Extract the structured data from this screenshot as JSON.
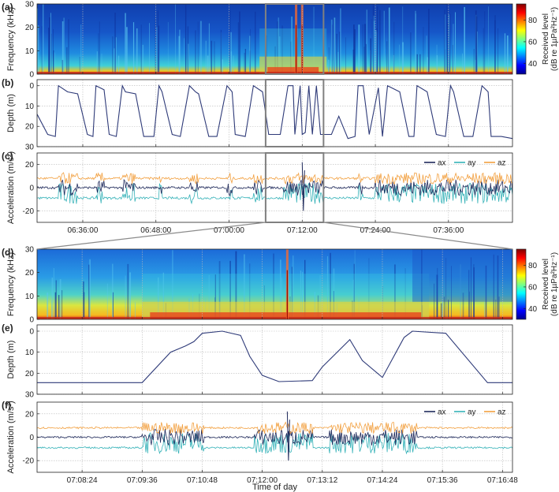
{
  "chart_data": [
    {
      "panel": "(a)",
      "type": "heatmap",
      "ylabel": "Frequency (kHz)",
      "yticks": [
        0,
        10,
        20,
        30
      ],
      "ylim": [
        0,
        30
      ],
      "x_range": [
        "06:28:30",
        "07:46:30"
      ],
      "colorbar": {
        "label_line1": "Received level",
        "label_line2": "(dB re 1µPa²Hz⁻¹)",
        "ticks": [
          40,
          60,
          80
        ],
        "range": [
          30,
          95
        ]
      },
      "highlight_box": [
        "07:06:00",
        "07:15:30"
      ],
      "loud_events": [
        "07:11:00",
        "07:12:00"
      ]
    },
    {
      "panel": "(b)",
      "type": "line",
      "ylabel": "Depth (m)",
      "yticks": [
        0,
        10,
        20,
        30
      ],
      "ylim": [
        30,
        -3
      ],
      "x_range": [
        "06:28:30",
        "07:46:30"
      ],
      "highlight_box": [
        "07:06:00",
        "07:15:30"
      ],
      "series": [
        {
          "color": "#2e3a78",
          "x": [
            "06:28:30",
            "06:30:15",
            "06:31:30",
            "06:32:00",
            "06:33:30",
            "06:35:10",
            "06:36:45",
            "06:37:40",
            "06:38:10",
            "06:39:30",
            "06:40:20",
            "06:41:30",
            "06:42:30",
            "06:43:00",
            "06:44:40",
            "06:46:00",
            "06:47:40",
            "06:48:30",
            "06:49:00",
            "06:50:40",
            "06:52:00",
            "06:53:30",
            "06:54:30",
            "06:55:00",
            "06:56:40",
            "06:58:00",
            "06:59:40",
            "07:00:30",
            "07:01:00",
            "07:02:40",
            "07:04:00",
            "07:05:30",
            "07:06:30",
            "07:07:00",
            "07:08:24",
            "07:09:40",
            "07:10:30",
            "07:10:48",
            "07:11:40",
            "07:12:00",
            "07:12:30",
            "07:13:05",
            "07:13:40",
            "07:14:20",
            "07:15:00",
            "07:15:40",
            "07:16:48",
            "07:18:00",
            "07:19:30",
            "07:20:40",
            "07:21:10",
            "07:22:00",
            "07:23:00",
            "07:24:30",
            "07:25:10",
            "07:26:00",
            "07:28:00",
            "07:29:30",
            "07:30:20",
            "07:30:50",
            "07:32:30",
            "07:34:00",
            "07:35:30",
            "07:36:20",
            "07:36:50",
            "07:38:30",
            "07:40:00",
            "07:41:30",
            "07:42:30",
            "07:43:00",
            "07:44:40",
            "07:46:30"
          ],
          "y": [
            14,
            24,
            25,
            0,
            3,
            4,
            24,
            25,
            0,
            2,
            24,
            25,
            0,
            3,
            4,
            25,
            25,
            0,
            3,
            24,
            25,
            0,
            3,
            4,
            25,
            25,
            0,
            3,
            24,
            25,
            0,
            3,
            24,
            24,
            24,
            0,
            0,
            24,
            0,
            24,
            23,
            0,
            24,
            0,
            24,
            24,
            24,
            15,
            26,
            25,
            0,
            0,
            24,
            1,
            25,
            0,
            3,
            25,
            25,
            0,
            3,
            24,
            25,
            0,
            3,
            25,
            25,
            0,
            3,
            25,
            25,
            26
          ]
        }
      ]
    },
    {
      "panel": "(c)",
      "type": "line",
      "ylabel": "Acceleration (m/s²)",
      "yticks": [
        -20,
        0,
        20
      ],
      "ylim": [
        -30,
        30
      ],
      "x_range": [
        "06:28:30",
        "07:46:30"
      ],
      "xtick_labels": [
        "06:36:00",
        "06:48:00",
        "07:00:00",
        "07:12:00",
        "07:24:00",
        "07:36:00"
      ],
      "highlight_box": [
        "07:06:00",
        "07:15:30"
      ],
      "legend_placement": "top-right",
      "series": [
        {
          "name": "ax",
          "color": "#1f2a5c",
          "baseline": 0,
          "amplitude": 7
        },
        {
          "name": "ay",
          "color": "#35b2b8",
          "baseline": -5,
          "amplitude": 9
        },
        {
          "name": "az",
          "color": "#f2a040",
          "baseline": 8,
          "amplitude": 5
        }
      ]
    },
    {
      "panel": "(d)",
      "type": "heatmap",
      "ylabel": "Frequency (kHz)",
      "yticks": [
        0,
        10,
        20,
        30
      ],
      "ylim": [
        0,
        30
      ],
      "x_range": [
        "07:07:30",
        "07:17:00"
      ],
      "colorbar": {
        "label_line1": "Received level",
        "label_line2": "(dB re 1µPa²Hz⁻¹)",
        "ticks": [
          40,
          60,
          80
        ],
        "range": [
          30,
          95
        ]
      },
      "loud_events": [
        "07:12:30"
      ]
    },
    {
      "panel": "(e)",
      "type": "line",
      "ylabel": "Depth (m)",
      "yticks": [
        0,
        10,
        20,
        30
      ],
      "ylim": [
        30,
        -3
      ],
      "x_range": [
        "07:07:30",
        "07:17:00"
      ],
      "series": [
        {
          "color": "#2e3a78",
          "x": [
            "07:07:30",
            "07:09:36",
            "07:10:10",
            "07:10:28",
            "07:10:38",
            "07:10:48",
            "07:11:12",
            "07:11:34",
            "07:11:45",
            "07:12:00",
            "07:12:20",
            "07:13:00",
            "07:13:12",
            "07:13:45",
            "07:14:00",
            "07:14:24",
            "07:14:50",
            "07:15:00",
            "07:15:40",
            "07:16:30",
            "07:17:00"
          ],
          "y": [
            24.5,
            24.5,
            10,
            7,
            5,
            1,
            0,
            2,
            12,
            21,
            24,
            23.5,
            17,
            4,
            14,
            22,
            3,
            0,
            1,
            24.5,
            24.5
          ]
        }
      ]
    },
    {
      "panel": "(f)",
      "type": "line",
      "ylabel": "Acceleration (m/s²)",
      "yticks": [
        -20,
        0,
        20
      ],
      "ylim": [
        -30,
        30
      ],
      "x_range": [
        "07:07:30",
        "07:17:00"
      ],
      "xtick_labels": [
        "07:08:24",
        "07:09:36",
        "07:10:48",
        "07:12:00",
        "07:13:12",
        "07:14:24",
        "07:15:36",
        "07:16:48"
      ],
      "xlabel": "Time of day",
      "legend_placement": "top-right",
      "series": [
        {
          "name": "ax",
          "color": "#1f2a5c",
          "baseline": 0,
          "amplitude": 7
        },
        {
          "name": "ay",
          "color": "#35b2b8",
          "baseline": -5,
          "amplitude": 9
        },
        {
          "name": "az",
          "color": "#f2a040",
          "baseline": 8,
          "amplitude": 5
        }
      ]
    }
  ]
}
